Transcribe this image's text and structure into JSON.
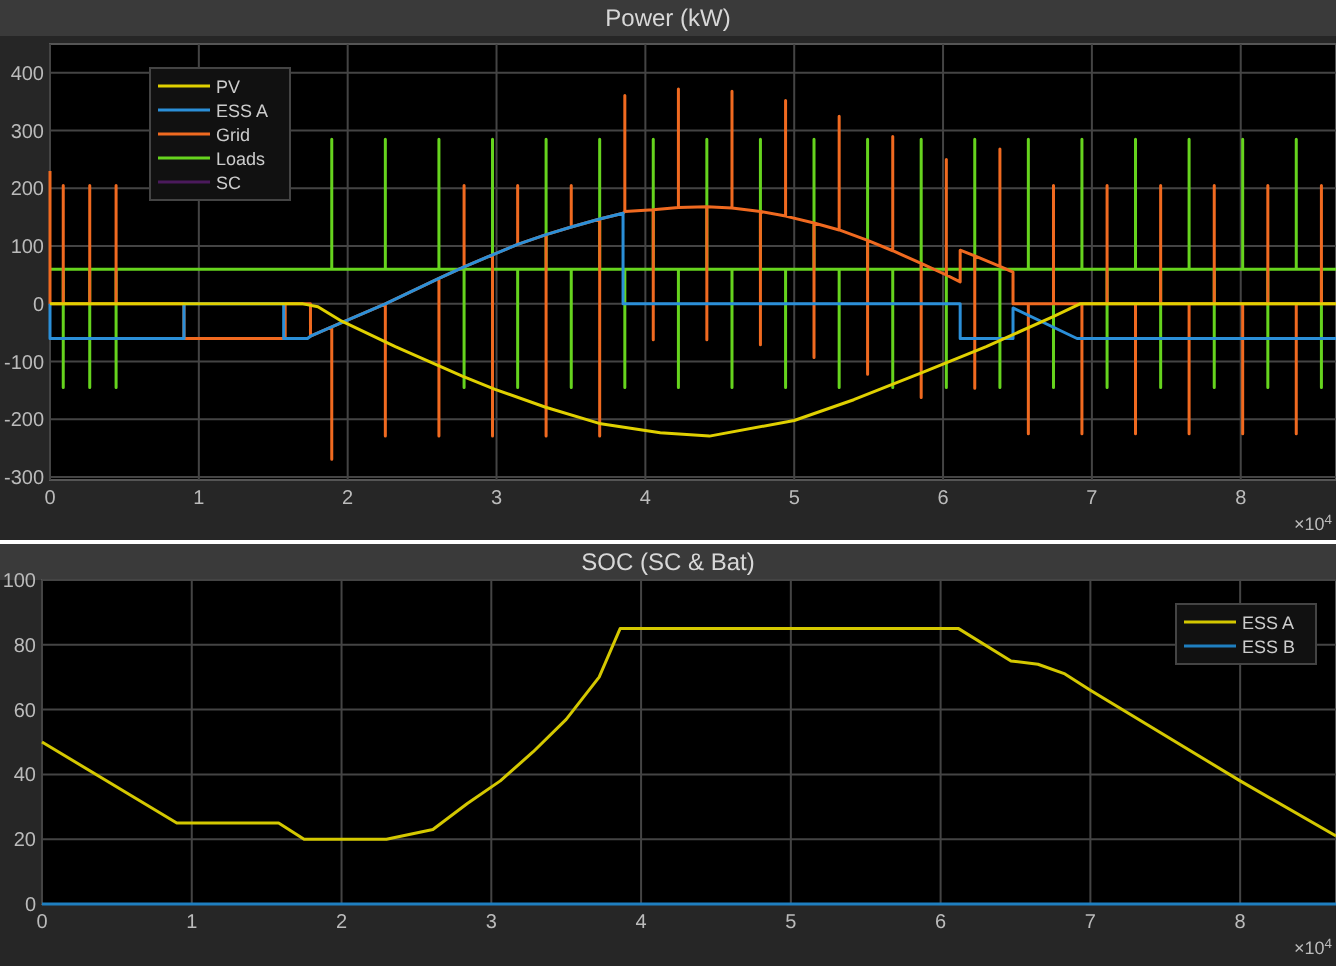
{
  "chart_data": [
    {
      "type": "line",
      "title": "Power (kW)",
      "xlim": [
        0,
        8.64
      ],
      "ylim": [
        -305,
        450
      ],
      "xticks": [
        0,
        1,
        2,
        3,
        4,
        5,
        6,
        7,
        8
      ],
      "yticks": [
        -300,
        -200,
        -100,
        0,
        100,
        200,
        300,
        400
      ],
      "grid": true,
      "legend": "top left",
      "annotations": [
        "×10$^{4}$"
      ],
      "series": [
        {
          "name": "PV",
          "color": "#e0d000",
          "x": [
            0,
            1.7,
            1.8,
            1.96,
            2.32,
            2.77,
            2.99,
            3.33,
            3.69,
            4.1,
            4.43,
            5.0,
            5.4,
            5.85,
            6.29,
            6.74,
            6.92,
            8.64
          ],
          "values": [
            0,
            0,
            -5,
            -30,
            -74,
            -125,
            -148,
            -179,
            -207,
            -223,
            -229,
            -202,
            -166,
            -120,
            -74,
            -22,
            0,
            0
          ]
        },
        {
          "name": "ESS A",
          "color": "#2b8fd8",
          "x": [
            0,
            0,
            0.9,
            0.9,
            1.57,
            1.57,
            1.73,
            1.75,
            1.893,
            2.253,
            2.613,
            2.782,
            2.973,
            3.142,
            3.333,
            3.502,
            3.693,
            3.85,
            3.85,
            6.115,
            6.115,
            6.47,
            6.47,
            6.9,
            8.64
          ],
          "values": [
            0,
            -60,
            -60,
            0,
            0,
            -60,
            -60,
            -56,
            -40,
            0,
            44,
            64,
            85,
            103,
            120,
            133,
            147,
            157,
            0,
            0,
            -60,
            -60,
            -7,
            -60,
            -60
          ]
        },
        {
          "name": "Grid",
          "color": "#f06a20",
          "x": [
            0,
            0,
            0.089,
            0.089,
            0.089,
            0.267,
            0.267,
            0.267,
            0.444,
            0.444,
            0.444,
            0.9,
            0.9,
            1.58,
            1.58,
            1.75,
            1.75,
            1.893,
            1.893,
            1.893,
            2.253,
            2.253,
            2.253,
            2.613,
            2.613,
            2.613,
            2.782,
            2.782,
            2.782,
            2.973,
            2.973,
            2.973,
            3.142,
            3.142,
            3.142,
            3.333,
            3.333,
            3.333,
            3.502,
            3.502,
            3.502,
            3.693,
            3.693,
            3.693,
            3.85,
            3.862,
            3.862,
            3.862,
            4.053,
            4.053,
            4.053,
            4.222,
            4.222,
            4.222,
            4.413,
            4.413,
            4.413,
            4.582,
            4.582,
            4.582,
            4.773,
            4.773,
            4.773,
            4.942,
            4.942,
            4.942,
            5.133,
            5.133,
            5.133,
            5.302,
            5.302,
            5.302,
            5.493,
            5.493,
            5.493,
            5.662,
            5.662,
            5.662,
            5.853,
            5.853,
            5.853,
            6.022,
            6.022,
            6.022,
            6.115,
            6.115,
            6.213,
            6.213,
            6.213,
            6.382,
            6.382,
            6.382,
            6.47,
            6.47,
            6.573,
            6.573,
            6.573,
            6.742,
            6.742,
            6.742,
            6.933,
            6.933,
            6.933,
            7.102,
            7.102,
            7.102,
            7.293,
            7.293,
            7.293,
            7.462,
            7.462,
            7.462,
            7.653,
            7.653,
            7.653,
            7.822,
            7.822,
            7.822,
            8.013,
            8.013,
            8.013,
            8.182,
            8.182,
            8.182,
            8.373,
            8.373,
            8.373,
            8.542,
            8.542,
            8.542,
            8.64
          ],
          "values": [
            230,
            0,
            0,
            205,
            0,
            0,
            205,
            0,
            0,
            205,
            0,
            0,
            -60,
            -60,
            0,
            0,
            -56,
            -40,
            -269,
            -40,
            0,
            -229,
            0,
            44,
            -229,
            44,
            64,
            205,
            64,
            85,
            -229,
            85,
            103,
            205,
            103,
            120,
            -229,
            120,
            133,
            205,
            133,
            147,
            -229,
            147,
            157,
            160,
            361,
            160,
            163,
            -62,
            163,
            167,
            372,
            167,
            168,
            -62,
            168,
            166,
            368,
            166,
            160,
            -71,
            160,
            152,
            352,
            152,
            140,
            -93,
            140,
            128,
            325,
            128,
            110,
            -122,
            110,
            92,
            290,
            92,
            70,
            -162,
            70,
            50,
            250,
            50,
            38,
            93,
            83,
            -146,
            83,
            65,
            268,
            65,
            55,
            0,
            0,
            -225,
            0,
            0,
            205,
            0,
            0,
            -225,
            0,
            0,
            205,
            0,
            0,
            -225,
            0,
            0,
            205,
            0,
            0,
            -225,
            0,
            0,
            205,
            0,
            0,
            -225,
            0,
            0,
            205,
            0,
            0,
            -225,
            0,
            0,
            205,
            0,
            0
          ]
        },
        {
          "name": "Loads",
          "color": "#66d41e",
          "x": [
            0,
            0.089,
            0.089,
            0.089,
            0.267,
            0.267,
            0.267,
            0.444,
            0.444,
            0.444,
            1.893,
            1.893,
            1.893,
            2.253,
            2.253,
            2.253,
            2.613,
            2.613,
            2.613,
            2.782,
            2.782,
            2.782,
            2.973,
            2.973,
            2.973,
            3.142,
            3.142,
            3.142,
            3.333,
            3.333,
            3.333,
            3.502,
            3.502,
            3.502,
            3.693,
            3.693,
            3.693,
            3.862,
            3.862,
            3.862,
            4.053,
            4.053,
            4.053,
            4.222,
            4.222,
            4.222,
            4.413,
            4.413,
            4.413,
            4.582,
            4.582,
            4.582,
            4.773,
            4.773,
            4.773,
            4.942,
            4.942,
            4.942,
            5.133,
            5.133,
            5.133,
            5.302,
            5.302,
            5.302,
            5.493,
            5.493,
            5.493,
            5.662,
            5.662,
            5.662,
            5.853,
            5.853,
            5.853,
            6.022,
            6.022,
            6.022,
            6.213,
            6.213,
            6.213,
            6.382,
            6.382,
            6.382,
            6.573,
            6.573,
            6.573,
            6.742,
            6.742,
            6.742,
            6.933,
            6.933,
            6.933,
            7.102,
            7.102,
            7.102,
            7.293,
            7.293,
            7.293,
            7.462,
            7.462,
            7.462,
            7.653,
            7.653,
            7.653,
            7.822,
            7.822,
            7.822,
            8.013,
            8.013,
            8.013,
            8.182,
            8.182,
            8.182,
            8.373,
            8.373,
            8.373,
            8.542,
            8.542,
            8.542,
            8.64
          ],
          "values": [
            60,
            60,
            -145,
            60,
            60,
            -145,
            60,
            60,
            -145,
            60,
            60,
            285,
            60,
            60,
            285,
            60,
            60,
            285,
            60,
            60,
            -145,
            60,
            60,
            285,
            60,
            60,
            -145,
            60,
            60,
            285,
            60,
            60,
            -145,
            60,
            60,
            285,
            60,
            60,
            -145,
            60,
            60,
            285,
            60,
            60,
            -145,
            60,
            60,
            285,
            60,
            60,
            -145,
            60,
            60,
            285,
            60,
            60,
            -145,
            60,
            60,
            285,
            60,
            60,
            -145,
            60,
            60,
            285,
            60,
            60,
            -145,
            60,
            60,
            285,
            60,
            60,
            -145,
            60,
            60,
            285,
            60,
            60,
            -145,
            60,
            60,
            285,
            60,
            60,
            -145,
            60,
            60,
            285,
            60,
            60,
            -145,
            60,
            60,
            285,
            60,
            60,
            -145,
            60,
            60,
            285,
            60,
            60,
            -145,
            60,
            60,
            285,
            60,
            60,
            -145,
            60,
            60,
            285,
            60,
            60,
            -145,
            60,
            60
          ]
        },
        {
          "name": "SC",
          "color": "#4b1a5c"
        }
      ]
    },
    {
      "type": "line",
      "title": "SOC (SC & Bat)",
      "xlim": [
        0,
        8.64
      ],
      "ylim": [
        0,
        100
      ],
      "xticks": [
        0,
        1,
        2,
        3,
        4,
        5,
        6,
        7,
        8
      ],
      "yticks": [
        0,
        20,
        40,
        60,
        80,
        100
      ],
      "grid": true,
      "legend": "top right",
      "annotations": [
        "×10$^{4}$"
      ],
      "series": [
        {
          "name": "ESS A",
          "color": "#d4c800",
          "x": [
            0,
            0.9,
            1.58,
            1.75,
            2.3,
            2.61,
            2.84,
            3.06,
            3.28,
            3.5,
            3.72,
            3.86,
            6.12,
            6.47,
            6.65,
            6.83,
            7.0,
            8.0,
            8.64
          ],
          "values": [
            50,
            25,
            25,
            20,
            20,
            23,
            31,
            38,
            47,
            57,
            70,
            85,
            85,
            75,
            74,
            71,
            66,
            38,
            21
          ]
        },
        {
          "name": "ESS B",
          "color": "#1f7fc0",
          "x": [
            0,
            8.64
          ],
          "values": [
            0,
            0
          ]
        }
      ]
    }
  ]
}
